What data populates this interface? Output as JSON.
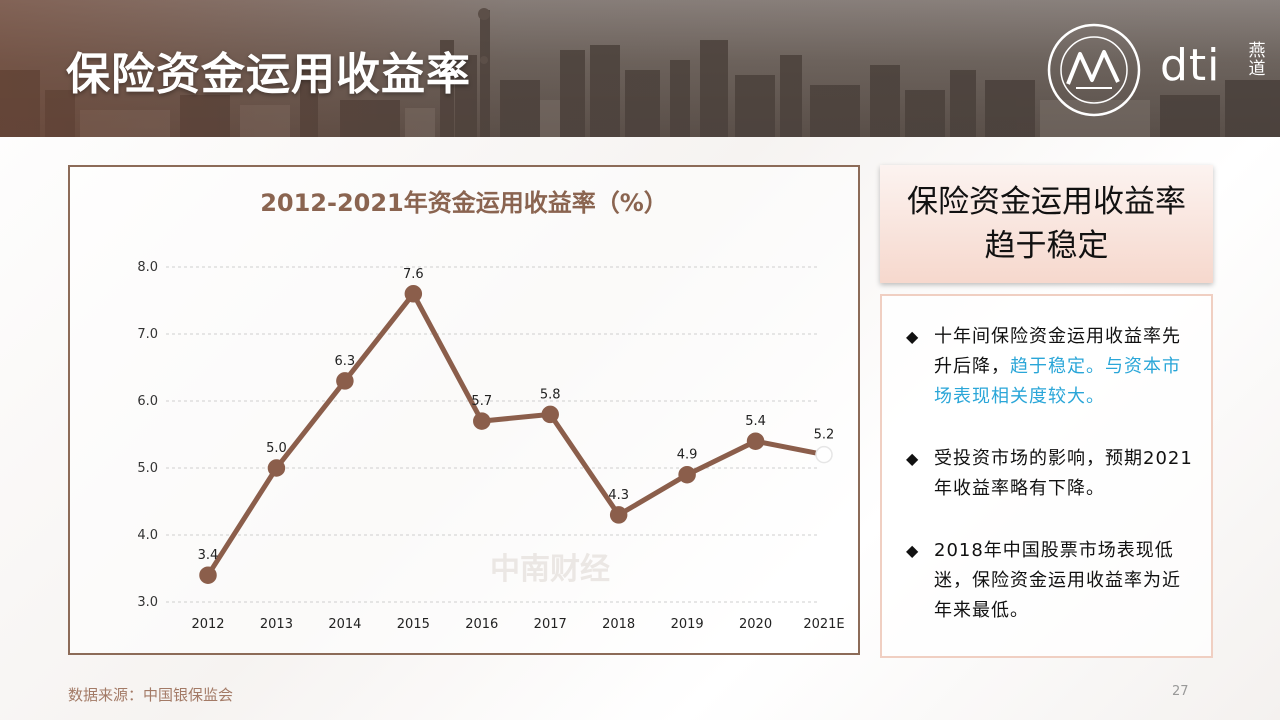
{
  "page_title": "保险资金运用收益率",
  "logo": {
    "brand": "dti",
    "sub": "燕道",
    "emblem_icon": "circular-seal-icon"
  },
  "summary": {
    "line1": "保险资金运用收益率",
    "line2": "趋于稳定"
  },
  "notes": [
    {
      "text": "十年间保险资金运用收益率先升后降，",
      "highlight": "趋于稳定。与资本市场表现相关度较大。"
    },
    {
      "text": "受投资市场的影响，预期2021年收益率略有下降。",
      "highlight": ""
    },
    {
      "text": "2018年中国股票市场表现低迷，保险资金运用收益率为近年来最低。",
      "highlight": ""
    }
  ],
  "bullet_symbol": "◆",
  "footer": {
    "source": "数据来源：中国银保监会",
    "page_number": "27"
  },
  "watermark": "中南财经",
  "colors": {
    "line": "#8b5e4b",
    "marker": "#8b5e4b",
    "forecast_marker": "#ffffff",
    "title": "#8a6450",
    "highlight": "#2aa6d8",
    "accent_border": "#8c6b58"
  },
  "chart_data": {
    "type": "line",
    "title": "2012-2021年资金运用收益率（%）",
    "xlabel": "",
    "ylabel": "",
    "categories": [
      "2012",
      "2013",
      "2014",
      "2015",
      "2016",
      "2017",
      "2018",
      "2019",
      "2020",
      "2021E"
    ],
    "series": [
      {
        "values": [
          3.4,
          5.0,
          6.3,
          7.6,
          5.7,
          5.8,
          4.3,
          4.9,
          5.4,
          5.2
        ]
      }
    ],
    "data_labels": [
      "3.4",
      "5.0",
      "6.3",
      "7.6",
      "5.7",
      "5.8",
      "4.3",
      "4.9",
      "5.4",
      "5.2"
    ],
    "ylim": [
      3.0,
      8.0
    ],
    "yticks": [
      "3.0",
      "4.0",
      "5.0",
      "6.0",
      "7.0",
      "8.0"
    ],
    "grid": true,
    "legend": "none",
    "forecast_index": 9
  }
}
